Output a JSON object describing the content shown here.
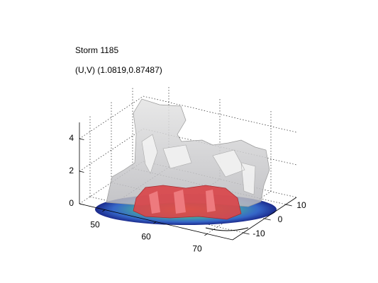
{
  "chart_data": {
    "type": "isosurface3d",
    "title": "Storm 1185",
    "subtitle": "(U,V) (1.0819,0.87487)",
    "xlim": [
      45,
      75
    ],
    "xticks": [
      50,
      60,
      70
    ],
    "ylim": [
      -15,
      15
    ],
    "yticks": [
      -10,
      0,
      10
    ],
    "zlim": [
      0,
      5
    ],
    "zticks": [
      0,
      2,
      4
    ],
    "grid": true
  }
}
